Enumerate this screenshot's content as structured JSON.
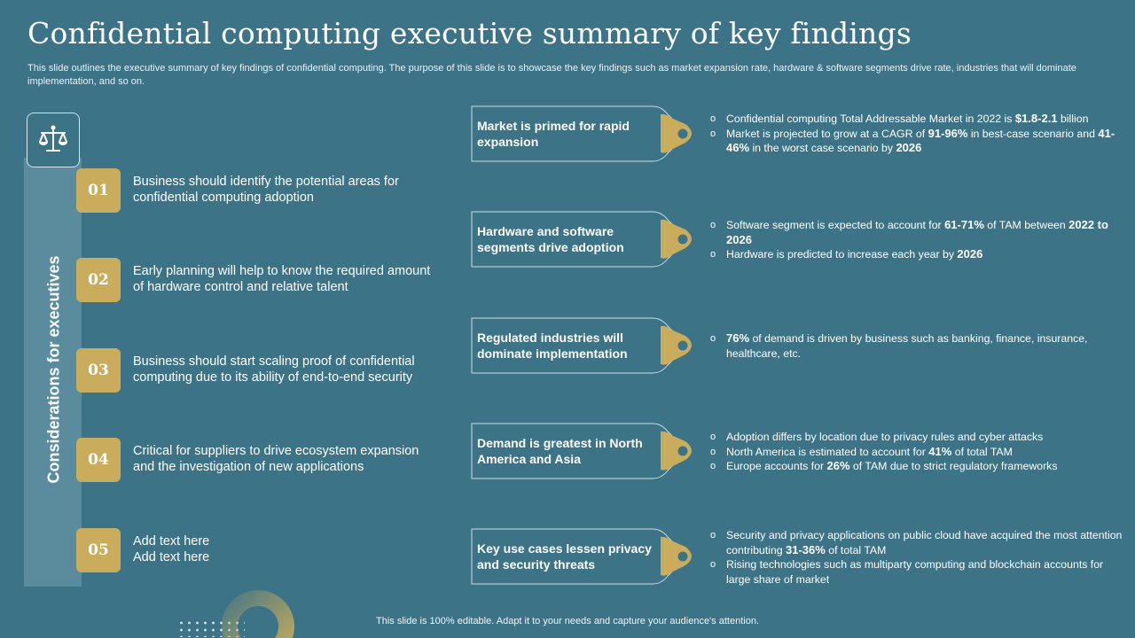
{
  "title": "Confidential computing executive summary of key findings",
  "subtitle": "This slide outlines the executive summary of key findings of confidential computing. The purpose of this slide is to showcase the key findings such as market expansion rate, hardware & software segments drive rate, industries that will dominate implementation, and so on.",
  "sidebar": {
    "label": "Considerations for executives",
    "icon": "scales-icon"
  },
  "considerations": [
    {
      "num": "01",
      "text": "Business should identify the potential areas for confidential computing adoption"
    },
    {
      "num": "02",
      "text": "Early planning will help to know the required amount of hardware control and relative talent"
    },
    {
      "num": "03",
      "text": "Business should start scaling proof of confidential computing due to its ability of end-to-end security"
    },
    {
      "num": "04",
      "text": "Critical for suppliers to drive ecosystem expansion and the investigation of new applications"
    },
    {
      "num": "05",
      "text": "Add text here\nAdd text here"
    }
  ],
  "findings": [
    {
      "title": "Market is primed for rapid expansion",
      "bullets": [
        [
          [
            "Confidential computing Total Addressable Market in 2022 is ",
            false
          ],
          [
            "$1.8-2.1",
            true
          ],
          [
            " billion",
            false
          ]
        ],
        [
          [
            "Market is projected to grow at a CAGR of ",
            false
          ],
          [
            "91-96%",
            true
          ],
          [
            " in best-case scenario and ",
            false
          ],
          [
            "41-46%",
            true
          ],
          [
            " in the worst case scenario by ",
            false
          ],
          [
            "2026",
            true
          ]
        ]
      ]
    },
    {
      "title": "Hardware and software segments drive adoption",
      "bullets": [
        [
          [
            "Software segment is expected to account for ",
            false
          ],
          [
            "61-71%",
            true
          ],
          [
            " of TAM between ",
            false
          ],
          [
            "2022 to 2026",
            true
          ]
        ],
        [
          [
            "Hardware is predicted to increase each year by ",
            false
          ],
          [
            "2026",
            true
          ]
        ]
      ]
    },
    {
      "title": "Regulated industries will dominate implementation",
      "bullets": [
        [
          [
            "76%",
            true
          ],
          [
            " of demand is driven by business such as banking, finance, insurance, healthcare, etc.",
            false
          ]
        ]
      ]
    },
    {
      "title": "Demand is greatest in North America and Asia",
      "bullets": [
        [
          [
            "Adoption differs by location due to privacy rules and cyber attacks",
            false
          ]
        ],
        [
          [
            "North America is estimated to account for ",
            false
          ],
          [
            "41%",
            true
          ],
          [
            " of total TAM",
            false
          ]
        ],
        [
          [
            "Europe accounts for ",
            false
          ],
          [
            "26%",
            true
          ],
          [
            " of TAM due to strict regulatory frameworks",
            false
          ]
        ]
      ]
    },
    {
      "title": "Key use cases lessen privacy and security threats",
      "bullets": [
        [
          [
            "Security and privacy applications on public cloud have acquired the most attention contributing ",
            false
          ],
          [
            "31-36%",
            true
          ],
          [
            " of total TAM",
            false
          ]
        ],
        [
          [
            "Rising technologies such as multiparty computing and blockchain accounts for large share of market",
            false
          ]
        ]
      ]
    }
  ],
  "footer": "This slide is 100% editable. Adapt it to your needs and capture your audience's attention.",
  "colors": {
    "background": "#3c7387",
    "accent_gold": "#c9ac5c",
    "sidebar": "#5b8c9e"
  }
}
